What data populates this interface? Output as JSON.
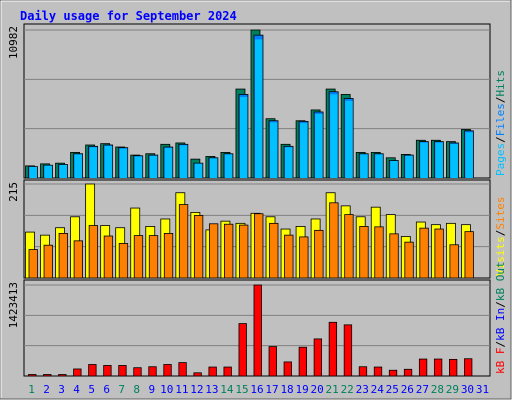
{
  "chart_data": {
    "type": "bar",
    "title": "Daily usage for September 2024",
    "categories": [
      "1",
      "2",
      "3",
      "4",
      "5",
      "6",
      "7",
      "8",
      "9",
      "10",
      "11",
      "12",
      "13",
      "14",
      "15",
      "16",
      "17",
      "18",
      "19",
      "20",
      "21",
      "22",
      "23",
      "24",
      "25",
      "26",
      "27",
      "28",
      "29",
      "30",
      "31"
    ],
    "weekend_days": [
      "1",
      "7",
      "8",
      "14",
      "15",
      "21",
      "22",
      "28",
      "29"
    ],
    "grid": true,
    "panels": [
      {
        "id": "pages-files-hits",
        "ymax_label": "10982",
        "ylim": [
          0,
          10982
        ],
        "legend": [
          "Pages",
          "/",
          "Files",
          "/",
          "Hits"
        ],
        "series": [
          {
            "name": "Hits",
            "values": [
              900,
              1050,
              1100,
              1900,
              2450,
              2550,
              2300,
              1700,
              1800,
              2500,
              2600,
              1400,
              1600,
              1900,
              6600,
              10982,
              4400,
              2500,
              4250,
              5050,
              6600,
              6200,
              1900,
              1900,
              1500,
              1750,
              2800,
              2800,
              2700,
              3600,
              0
            ]
          },
          {
            "name": "Files",
            "values": [
              850,
              950,
              1000,
              1800,
              2350,
              2450,
              2250,
              1650,
              1700,
              2300,
              2500,
              1100,
              1500,
              1800,
              6200,
              10600,
              4250,
              2350,
              4200,
              4900,
              6400,
              5900,
              1800,
              1800,
              1300,
              1700,
              2700,
              2700,
              2600,
              3500,
              0
            ]
          }
        ]
      },
      {
        "id": "visits-sites",
        "ymax_label": "215",
        "ylim": [
          0,
          215
        ],
        "legend": [
          "Visits",
          "/",
          "Sites"
        ],
        "series": [
          {
            "name": "Visits",
            "values": [
              105,
              98,
              115,
              140,
              215,
              120,
              115,
              160,
              118,
              135,
              195,
              150,
              110,
              130,
              125,
              148,
              140,
              112,
              118,
              135,
              195,
              165,
              140,
              162,
              145,
              95,
              128,
              122,
              125,
              122,
              0
            ]
          },
          {
            "name": "Sites",
            "values": [
              65,
              75,
              102,
              85,
              120,
              96,
              79,
              97,
              97,
              102,
              168,
              143,
              124,
              123,
              121,
              147,
              125,
              98,
              94,
              109,
              172,
              145,
              118,
              117,
              101,
              82,
              114,
              112,
              76,
              106,
              0
            ]
          }
        ]
      },
      {
        "id": "kb",
        "ymax_label": "1423413",
        "ylim": [
          0,
          1423413
        ],
        "legend": [
          "kB F",
          "/",
          "kB In",
          "/",
          "kB Out"
        ],
        "series": [
          {
            "name": "kB F",
            "values": [
              15000,
              15000,
              15000,
              110000,
              180000,
              165000,
              165000,
              130000,
              145000,
              180000,
              210000,
              50000,
              140000,
              140000,
              820000,
              1423413,
              460000,
              220000,
              450000,
              580000,
              840000,
              800000,
              145000,
              140000,
              90000,
              105000,
              265000,
              265000,
              260000,
              270000,
              0
            ]
          }
        ]
      }
    ],
    "colors": {
      "hits": "#00805C",
      "files": "#0080FF",
      "pages": "#00C0FF",
      "visits": "#FFFF00",
      "sites": "#FF8000",
      "kbf": "#FF0000",
      "kbin": "#0000FF",
      "kbout": "#00805C",
      "title": "#0000FF",
      "weekday": "#0000FF",
      "weekend": "#00805C",
      "panel_bg": "#C0C0C0"
    }
  }
}
